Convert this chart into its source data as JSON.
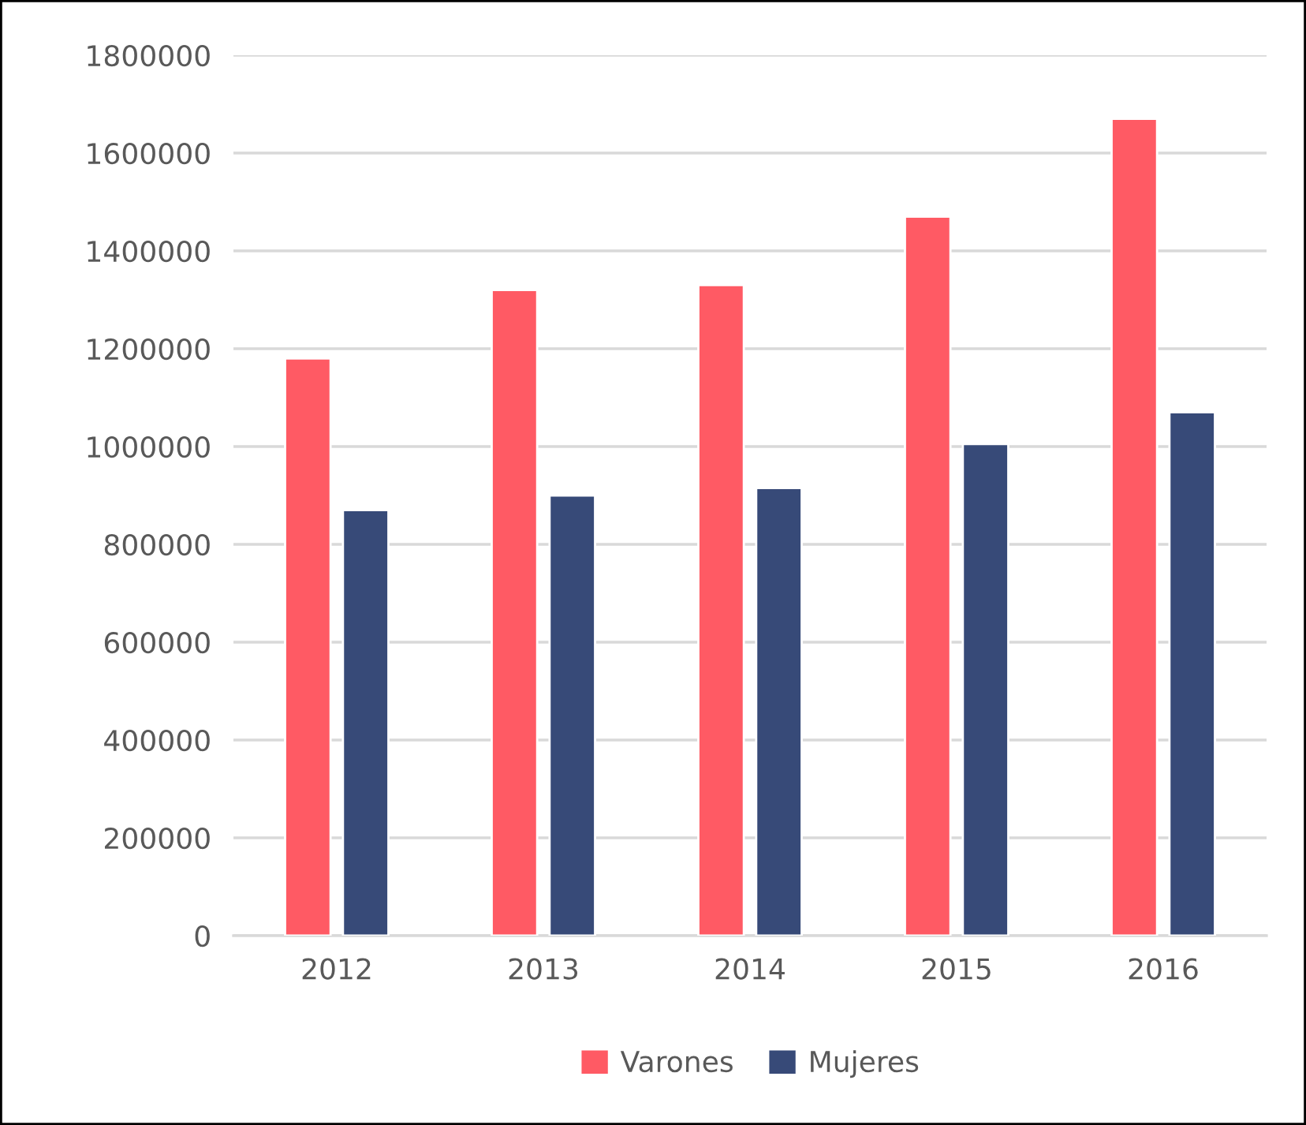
{
  "chart_data": {
    "type": "bar",
    "categories": [
      "2012",
      "2013",
      "2014",
      "2015",
      "2016"
    ],
    "series": [
      {
        "name": "Varones",
        "color": "#ff5a64",
        "values": [
          1180000,
          1320000,
          1330000,
          1470000,
          1670000
        ]
      },
      {
        "name": "Mujeres",
        "color": "#374a78",
        "values": [
          870000,
          900000,
          915000,
          1005000,
          1070000
        ]
      }
    ],
    "ylim": [
      0,
      1800000
    ],
    "yticks": [
      0,
      200000,
      400000,
      600000,
      800000,
      1000000,
      1200000,
      1400000,
      1600000,
      1800000
    ],
    "grid": "y",
    "legend": "bottom"
  }
}
